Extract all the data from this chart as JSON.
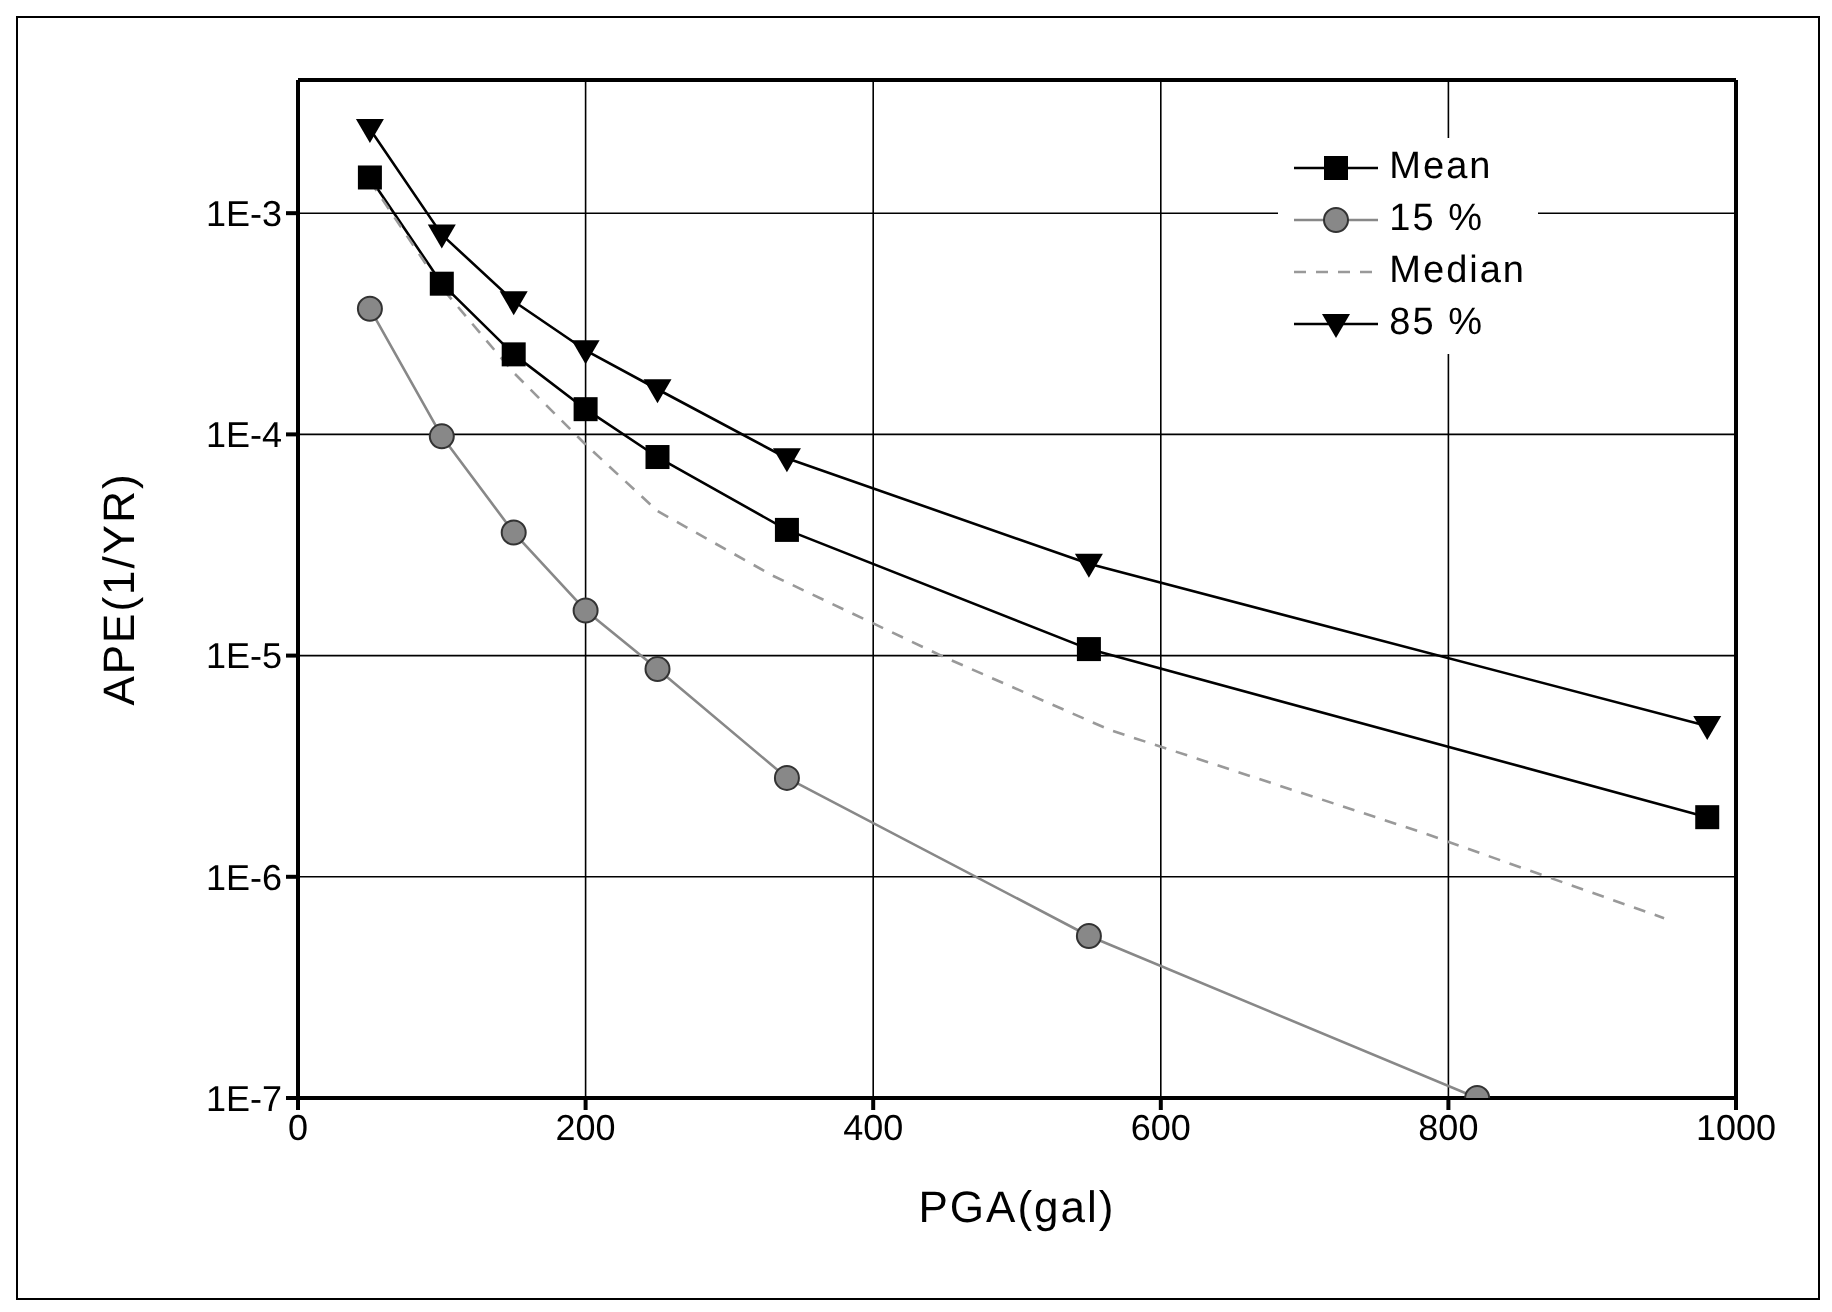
{
  "chart_data": {
    "type": "line",
    "xlabel": "PGA(gal)",
    "ylabel": "APE(1/YR)",
    "xlim": [
      0,
      1000
    ],
    "xticks": [
      0,
      200,
      400,
      600,
      800,
      1000
    ],
    "ylim": [
      1e-07,
      0.004
    ],
    "yticks": [
      {
        "value": 1e-07,
        "label": "1E-7"
      },
      {
        "value": 1e-06,
        "label": "1E-6"
      },
      {
        "value": 1e-05,
        "label": "1E-5"
      },
      {
        "value": 0.0001,
        "label": "1E-4"
      },
      {
        "value": 0.001,
        "label": "1E-3"
      }
    ],
    "log": "y",
    "grid": true,
    "legend": "top right",
    "series": [
      {
        "name": "Mean",
        "color": "#000000",
        "marker": "square",
        "x": [
          50,
          100,
          150,
          200,
          250,
          340,
          550,
          980
        ],
        "values": [
          0.00145,
          0.00048,
          0.00023,
          0.00013,
          7.9e-05,
          3.7e-05,
          1.07e-05,
          1.86e-06
        ]
      },
      {
        "name": "15 %",
        "color": "#888888",
        "marker": "circle",
        "x": [
          50,
          100,
          150,
          200,
          250,
          340,
          550,
          820
        ],
        "values": [
          0.00037,
          9.8e-05,
          3.6e-05,
          1.6e-05,
          8.7e-06,
          2.8e-06,
          5.4e-07,
          1e-07
        ]
      },
      {
        "name": "Median",
        "color": "#999999",
        "marker": "none",
        "line_style": "dashed",
        "x": [
          50,
          100,
          150,
          200,
          250,
          330,
          450,
          565,
          780,
          950
        ],
        "values": [
          0.0014,
          0.00046,
          0.00019,
          9e-05,
          4.5e-05,
          2.3e-05,
          9.8e-06,
          4.6e-06,
          1.6e-06,
          6.5e-07
        ]
      },
      {
        "name": "85 %",
        "color": "#000000",
        "marker": "triangle",
        "x": [
          50,
          100,
          150,
          200,
          250,
          340,
          550,
          980
        ],
        "values": [
          0.0024,
          0.0008,
          0.0004,
          0.00024,
          0.00016,
          7.8e-05,
          2.6e-05,
          4.8e-06
        ]
      }
    ]
  }
}
